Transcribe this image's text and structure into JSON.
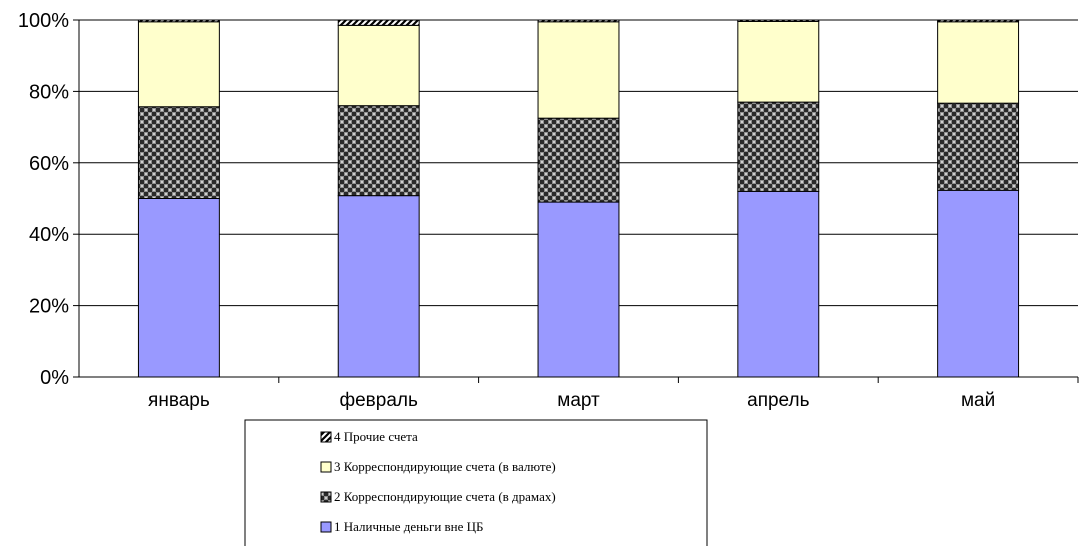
{
  "chart_data": {
    "type": "bar",
    "stacked": true,
    "percent_stacked": true,
    "categories": [
      "январь",
      "февраль",
      "март",
      "апрель",
      "май"
    ],
    "series": [
      {
        "name": "1 Наличные деньги вне ЦБ",
        "values": [
          50,
          50.8,
          49,
          52,
          52.3
        ],
        "color": "#9999ff",
        "pattern": "solid"
      },
      {
        "name": "2 Корреспондирующие счета (в драмах)",
        "values": [
          25.7,
          25.2,
          23.5,
          25,
          24.4
        ],
        "color": "#333333",
        "pattern": "checker"
      },
      {
        "name": "3 Корреспондирующие счета (в валюте)",
        "values": [
          23.8,
          22.5,
          27,
          22.6,
          22.8
        ],
        "color": "#ffffcc",
        "pattern": "solid"
      },
      {
        "name": "4 Прочие счета",
        "values": [
          0.5,
          1.5,
          0.5,
          0.4,
          0.5
        ],
        "color": "#000000",
        "pattern": "diagonal"
      }
    ],
    "yticks": [
      "0%",
      "20%",
      "40%",
      "60%",
      "80%",
      "100%"
    ],
    "ylim": [
      0,
      100
    ],
    "grid": true,
    "legend_position": "bottom",
    "legend_order": [
      3,
      2,
      1,
      0
    ],
    "title": "",
    "xlabel": "",
    "ylabel": ""
  }
}
